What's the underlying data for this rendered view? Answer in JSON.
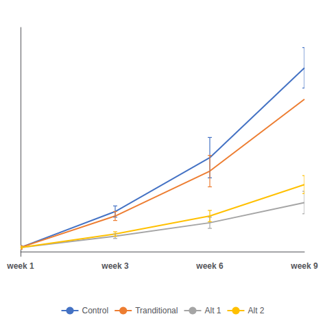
{
  "chart_data": {
    "type": "line",
    "categories": [
      "week 1",
      "week 3",
      "week 6",
      "week 9"
    ],
    "series": [
      {
        "name": "Control",
        "color": "#4472C4",
        "values": [
          0.02,
          0.18,
          0.42,
          0.82
        ],
        "errors": [
          0.008,
          0.025,
          0.09,
          0.09
        ]
      },
      {
        "name": "Tranditional",
        "color": "#ED7D31",
        "values": [
          0.02,
          0.16,
          0.36,
          0.68
        ],
        "errors": [
          0.008,
          0.02,
          0.07,
          null
        ]
      },
      {
        "name": "Alt 1",
        "color": "#A5A5A5",
        "values": [
          0.02,
          0.07,
          0.13,
          0.22
        ],
        "errors": [
          0.005,
          0.01,
          0.025,
          0.05
        ]
      },
      {
        "name": "Alt 2",
        "color": "#FFC000",
        "values": [
          0.02,
          0.08,
          0.16,
          0.3
        ],
        "errors": [
          0.005,
          0.01,
          0.025,
          0.04
        ]
      }
    ],
    "ylim": [
      -0.02,
      1.0
    ],
    "yticks": [],
    "tick_labels": "x",
    "grid": false,
    "legend": "bottom",
    "marker": "none"
  }
}
